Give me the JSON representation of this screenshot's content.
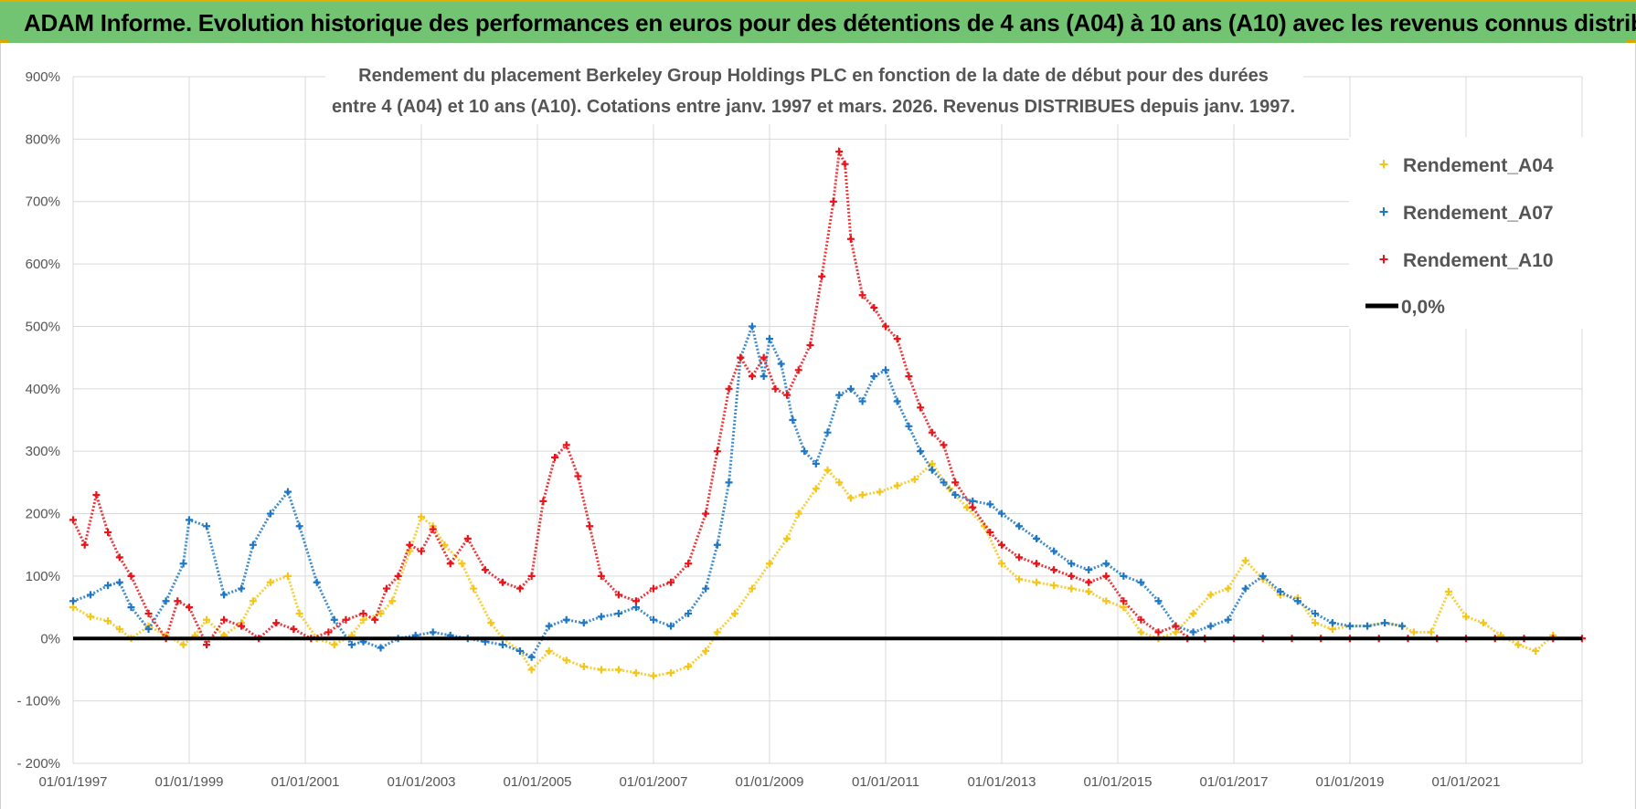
{
  "header": {
    "title": "ADAM Informe. Evolution historique des performances en euros pour des détentions de 4 ans (A04) à 10 ans (A10) avec les revenus connus distribués"
  },
  "colors": {
    "header_bg": "#72c472",
    "a04": "#f5c518",
    "a07": "#1f77c4",
    "a10": "#e8141a",
    "zero": "#000000",
    "grid": "#d9d9d9"
  },
  "chart_data": {
    "type": "scatter",
    "title_lines": [
      "Rendement du placement Berkeley Group Holdings PLC en fonction de la date de début pour des durées",
      "entre 4 (A04) et 10 ans (A10).  Cotations entre janv. 1997 et mars. 2026.  Revenus DISTRIBUES depuis janv. 1997."
    ],
    "xlim": [
      1997.0,
      2023.0
    ],
    "ylim": [
      -200,
      900
    ],
    "x_ticks": [
      {
        "value": 1997,
        "label": "01/01/1997"
      },
      {
        "value": 1999,
        "label": "01/01/1999"
      },
      {
        "value": 2001,
        "label": "01/01/2001"
      },
      {
        "value": 2003,
        "label": "01/01/2003"
      },
      {
        "value": 2005,
        "label": "01/01/2005"
      },
      {
        "value": 2007,
        "label": "01/01/2007"
      },
      {
        "value": 2009,
        "label": "01/01/2009"
      },
      {
        "value": 2011,
        "label": "01/01/2011"
      },
      {
        "value": 2013,
        "label": "01/01/2013"
      },
      {
        "value": 2015,
        "label": "01/01/2015"
      },
      {
        "value": 2017,
        "label": "01/01/2017"
      },
      {
        "value": 2019,
        "label": "01/01/2019"
      },
      {
        "value": 2021,
        "label": "01/01/2021"
      }
    ],
    "y_ticks": [
      {
        "value": 900,
        "label": "900%"
      },
      {
        "value": 800,
        "label": "800%"
      },
      {
        "value": 700,
        "label": "700%"
      },
      {
        "value": 600,
        "label": "600%"
      },
      {
        "value": 500,
        "label": "500%"
      },
      {
        "value": 400,
        "label": "400%"
      },
      {
        "value": 300,
        "label": "300%"
      },
      {
        "value": 200,
        "label": "200%"
      },
      {
        "value": 100,
        "label": "100%"
      },
      {
        "value": 0,
        "label": "0%"
      },
      {
        "value": -100,
        "label": "- 100%"
      },
      {
        "value": -200,
        "label": "- 200%"
      }
    ],
    "zero_line": {
      "name": "0,0%",
      "value": 0
    },
    "series": [
      {
        "name": "Rendement_A04",
        "color": "#f5c518",
        "x": [
          1997.0,
          1997.3,
          1997.6,
          1997.8,
          1998.0,
          1998.3,
          1998.6,
          1998.9,
          1999.1,
          1999.3,
          1999.6,
          1999.9,
          2000.1,
          2000.4,
          2000.7,
          2000.9,
          2001.2,
          2001.5,
          2001.8,
          2002.0,
          2002.3,
          2002.5,
          2002.8,
          2003.0,
          2003.2,
          2003.4,
          2003.7,
          2003.9,
          2004.2,
          2004.4,
          2004.7,
          2004.9,
          2005.2,
          2005.5,
          2005.8,
          2006.1,
          2006.4,
          2006.7,
          2007.0,
          2007.3,
          2007.6,
          2007.9,
          2008.1,
          2008.4,
          2008.7,
          2009.0,
          2009.3,
          2009.5,
          2009.8,
          2010.0,
          2010.2,
          2010.4,
          2010.6,
          2010.9,
          2011.2,
          2011.5,
          2011.8,
          2012.1,
          2012.4,
          2012.7,
          2013.0,
          2013.3,
          2013.6,
          2013.9,
          2014.2,
          2014.5,
          2014.8,
          2015.1,
          2015.4,
          2015.7,
          2016.0,
          2016.3,
          2016.6,
          2016.9,
          2017.2,
          2017.5,
          2017.8,
          2018.1,
          2018.4,
          2018.7,
          2019.0,
          2019.3,
          2019.6,
          2019.9,
          2020.1,
          2020.4,
          2020.7,
          2021.0,
          2021.3,
          2021.6,
          2021.9,
          2022.2,
          2022.5
        ],
        "values": [
          50,
          35,
          28,
          15,
          0,
          20,
          5,
          -10,
          5,
          30,
          5,
          25,
          60,
          90,
          100,
          40,
          0,
          -10,
          5,
          30,
          40,
          60,
          140,
          195,
          180,
          150,
          120,
          80,
          25,
          0,
          -20,
          -50,
          -20,
          -35,
          -45,
          -50,
          -50,
          -55,
          -60,
          -55,
          -45,
          -20,
          10,
          40,
          80,
          120,
          160,
          200,
          240,
          270,
          250,
          225,
          230,
          235,
          245,
          255,
          280,
          240,
          210,
          180,
          120,
          95,
          90,
          85,
          80,
          75,
          60,
          50,
          10,
          0,
          10,
          40,
          70,
          80,
          125,
          95,
          70,
          65,
          25,
          15,
          20,
          20,
          25,
          20,
          10,
          10,
          75,
          35,
          25,
          5,
          -10,
          -20,
          5
        ]
      },
      {
        "name": "Rendement_A07",
        "color": "#1f77c4",
        "x": [
          1997.0,
          1997.3,
          1997.6,
          1997.8,
          1998.0,
          1998.3,
          1998.6,
          1998.9,
          1999.0,
          1999.3,
          1999.6,
          1999.9,
          2000.1,
          2000.4,
          2000.7,
          2000.9,
          2001.2,
          2001.5,
          2001.8,
          2002.0,
          2002.3,
          2002.6,
          2002.9,
          2003.2,
          2003.5,
          2003.8,
          2004.1,
          2004.4,
          2004.7,
          2004.9,
          2005.2,
          2005.5,
          2005.8,
          2006.1,
          2006.4,
          2006.7,
          2007.0,
          2007.3,
          2007.6,
          2007.9,
          2008.1,
          2008.3,
          2008.5,
          2008.7,
          2008.9,
          2009.0,
          2009.2,
          2009.4,
          2009.6,
          2009.8,
          2010.0,
          2010.2,
          2010.4,
          2010.6,
          2010.8,
          2011.0,
          2011.2,
          2011.4,
          2011.6,
          2011.8,
          2012.0,
          2012.2,
          2012.5,
          2012.8,
          2013.0,
          2013.3,
          2013.6,
          2013.9,
          2014.2,
          2014.5,
          2014.8,
          2015.1,
          2015.4,
          2015.7,
          2016.0,
          2016.3,
          2016.6,
          2016.9,
          2017.2,
          2017.5,
          2017.8,
          2018.1,
          2018.4,
          2018.7,
          2019.0,
          2019.3,
          2019.6,
          2019.9
        ],
        "values": [
          60,
          70,
          85,
          90,
          50,
          15,
          60,
          120,
          190,
          180,
          70,
          80,
          150,
          200,
          235,
          180,
          90,
          30,
          -10,
          -5,
          -15,
          0,
          5,
          10,
          5,
          0,
          -5,
          -10,
          -20,
          -30,
          20,
          30,
          25,
          35,
          40,
          50,
          30,
          20,
          40,
          80,
          150,
          250,
          450,
          500,
          420,
          480,
          440,
          350,
          300,
          280,
          330,
          390,
          400,
          380,
          420,
          430,
          380,
          340,
          300,
          270,
          250,
          230,
          220,
          215,
          200,
          180,
          160,
          140,
          120,
          110,
          120,
          100,
          90,
          60,
          20,
          10,
          20,
          30,
          80,
          100,
          75,
          60,
          40,
          25,
          20,
          20,
          25,
          20
        ]
      },
      {
        "name": "Rendement_A10",
        "color": "#e8141a",
        "x": [
          1997.0,
          1997.2,
          1997.4,
          1997.6,
          1997.8,
          1998.0,
          1998.3,
          1998.6,
          1998.8,
          1999.0,
          1999.3,
          1999.6,
          1999.9,
          2000.2,
          2000.5,
          2000.8,
          2001.1,
          2001.4,
          2001.7,
          2002.0,
          2002.2,
          2002.4,
          2002.6,
          2002.8,
          2003.0,
          2003.2,
          2003.5,
          2003.8,
          2004.1,
          2004.4,
          2004.7,
          2004.9,
          2005.1,
          2005.3,
          2005.5,
          2005.7,
          2005.9,
          2006.1,
          2006.4,
          2006.7,
          2007.0,
          2007.3,
          2007.6,
          2007.9,
          2008.1,
          2008.3,
          2008.5,
          2008.7,
          2008.9,
          2009.1,
          2009.3,
          2009.5,
          2009.7,
          2009.9,
          2010.1,
          2010.2,
          2010.3,
          2010.4,
          2010.6,
          2010.8,
          2011.0,
          2011.2,
          2011.4,
          2011.6,
          2011.8,
          2012.0,
          2012.2,
          2012.5,
          2012.8,
          2013.0,
          2013.3,
          2013.6,
          2013.9,
          2014.2,
          2014.5,
          2014.8,
          2015.1,
          2015.4,
          2015.7,
          2016.0,
          2016.2,
          2016.5,
          2017.0,
          2017.5,
          2018.0,
          2018.5,
          2019.0,
          2019.5,
          2020.0,
          2020.5,
          2021.0,
          2021.5,
          2022.0,
          2022.5,
          2023.0
        ],
        "values": [
          190,
          150,
          230,
          170,
          130,
          100,
          40,
          0,
          60,
          50,
          -10,
          30,
          20,
          0,
          25,
          15,
          0,
          10,
          30,
          40,
          30,
          80,
          100,
          150,
          140,
          175,
          120,
          160,
          110,
          90,
          80,
          100,
          220,
          290,
          310,
          260,
          180,
          100,
          70,
          60,
          80,
          90,
          120,
          200,
          300,
          400,
          450,
          420,
          450,
          400,
          390,
          430,
          470,
          580,
          700,
          780,
          760,
          640,
          550,
          530,
          500,
          480,
          420,
          370,
          330,
          310,
          250,
          210,
          170,
          150,
          130,
          120,
          110,
          100,
          90,
          100,
          60,
          30,
          10,
          20,
          0,
          0,
          0,
          0,
          0,
          0,
          0,
          0,
          0,
          0,
          0,
          0,
          0,
          0,
          0
        ]
      }
    ],
    "legend": [
      "Rendement_A04",
      "Rendement_A07",
      "Rendement_A10",
      "0,0%"
    ]
  }
}
